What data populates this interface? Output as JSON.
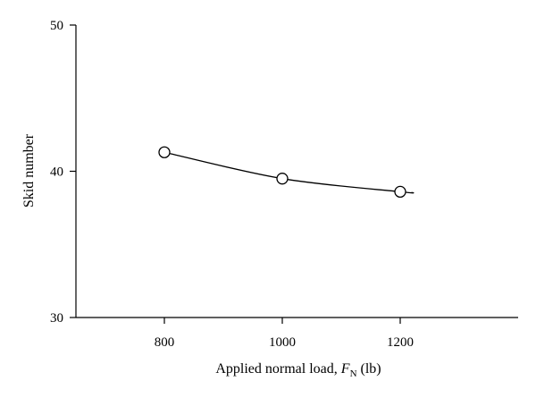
{
  "chart_data": {
    "type": "line",
    "title": "",
    "xlabel": {
      "prefix": "Applied normal load, ",
      "var": "F",
      "sub": "N",
      "suffix": " (lb)"
    },
    "ylabel": "Skid number",
    "xlim": [
      650,
      1400
    ],
    "ylim": [
      30,
      50
    ],
    "xticks": [
      800,
      1000,
      1200
    ],
    "yticks": [
      30,
      40,
      50
    ],
    "grid": false,
    "legend": "none",
    "series": [
      {
        "points": [
          {
            "x": 800,
            "y": 41.3
          },
          {
            "x": 1000,
            "y": 39.5
          },
          {
            "x": 1200,
            "y": 38.6
          }
        ],
        "curve_end": {
          "x": 1220,
          "y": 38.55
        }
      }
    ],
    "colors": {
      "line": "#000000",
      "marker_fill": "#ffffff",
      "marker_stroke": "#000000"
    }
  }
}
